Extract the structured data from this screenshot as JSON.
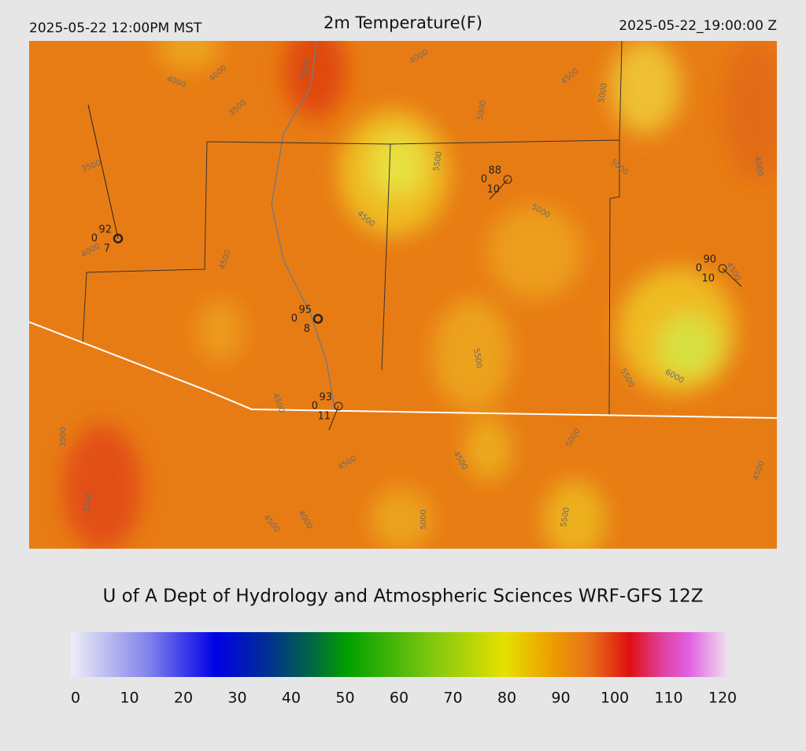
{
  "header": {
    "left": "2025-05-22 12:00PM MST",
    "title": "2m Temperature(F)",
    "right": "2025-05-22_19:00:00 Z"
  },
  "map": {
    "contour_labels": [
      "4000",
      "4000",
      "3500",
      "4000",
      "3500",
      "4500",
      "5000",
      "5000",
      "5500",
      "5000",
      "4000",
      "3500",
      "4000",
      "4500",
      "4500",
      "5000",
      "4500",
      "5500",
      "6000",
      "5500",
      "4500",
      "3500",
      "5000",
      "4500",
      "4500",
      "3500",
      "4500",
      "4500",
      "4000",
      "5000",
      "5500"
    ],
    "stations": [
      {
        "temp": "92",
        "dew": "0",
        "wind": "7"
      },
      {
        "temp": "95",
        "dew": "0",
        "wind": "8"
      },
      {
        "temp": "93",
        "dew": "0",
        "wind": "11"
      },
      {
        "temp": "88",
        "dew": "0",
        "wind": "10"
      },
      {
        "temp": "90",
        "dew": "0",
        "wind": "10"
      }
    ]
  },
  "footer": {
    "credit": "U of A Dept of Hydrology and Atmospheric Sciences WRF-GFS 12Z"
  },
  "colorbar": {
    "ticks": [
      0,
      10,
      20,
      30,
      40,
      50,
      60,
      70,
      80,
      90,
      100,
      110,
      120
    ]
  }
}
